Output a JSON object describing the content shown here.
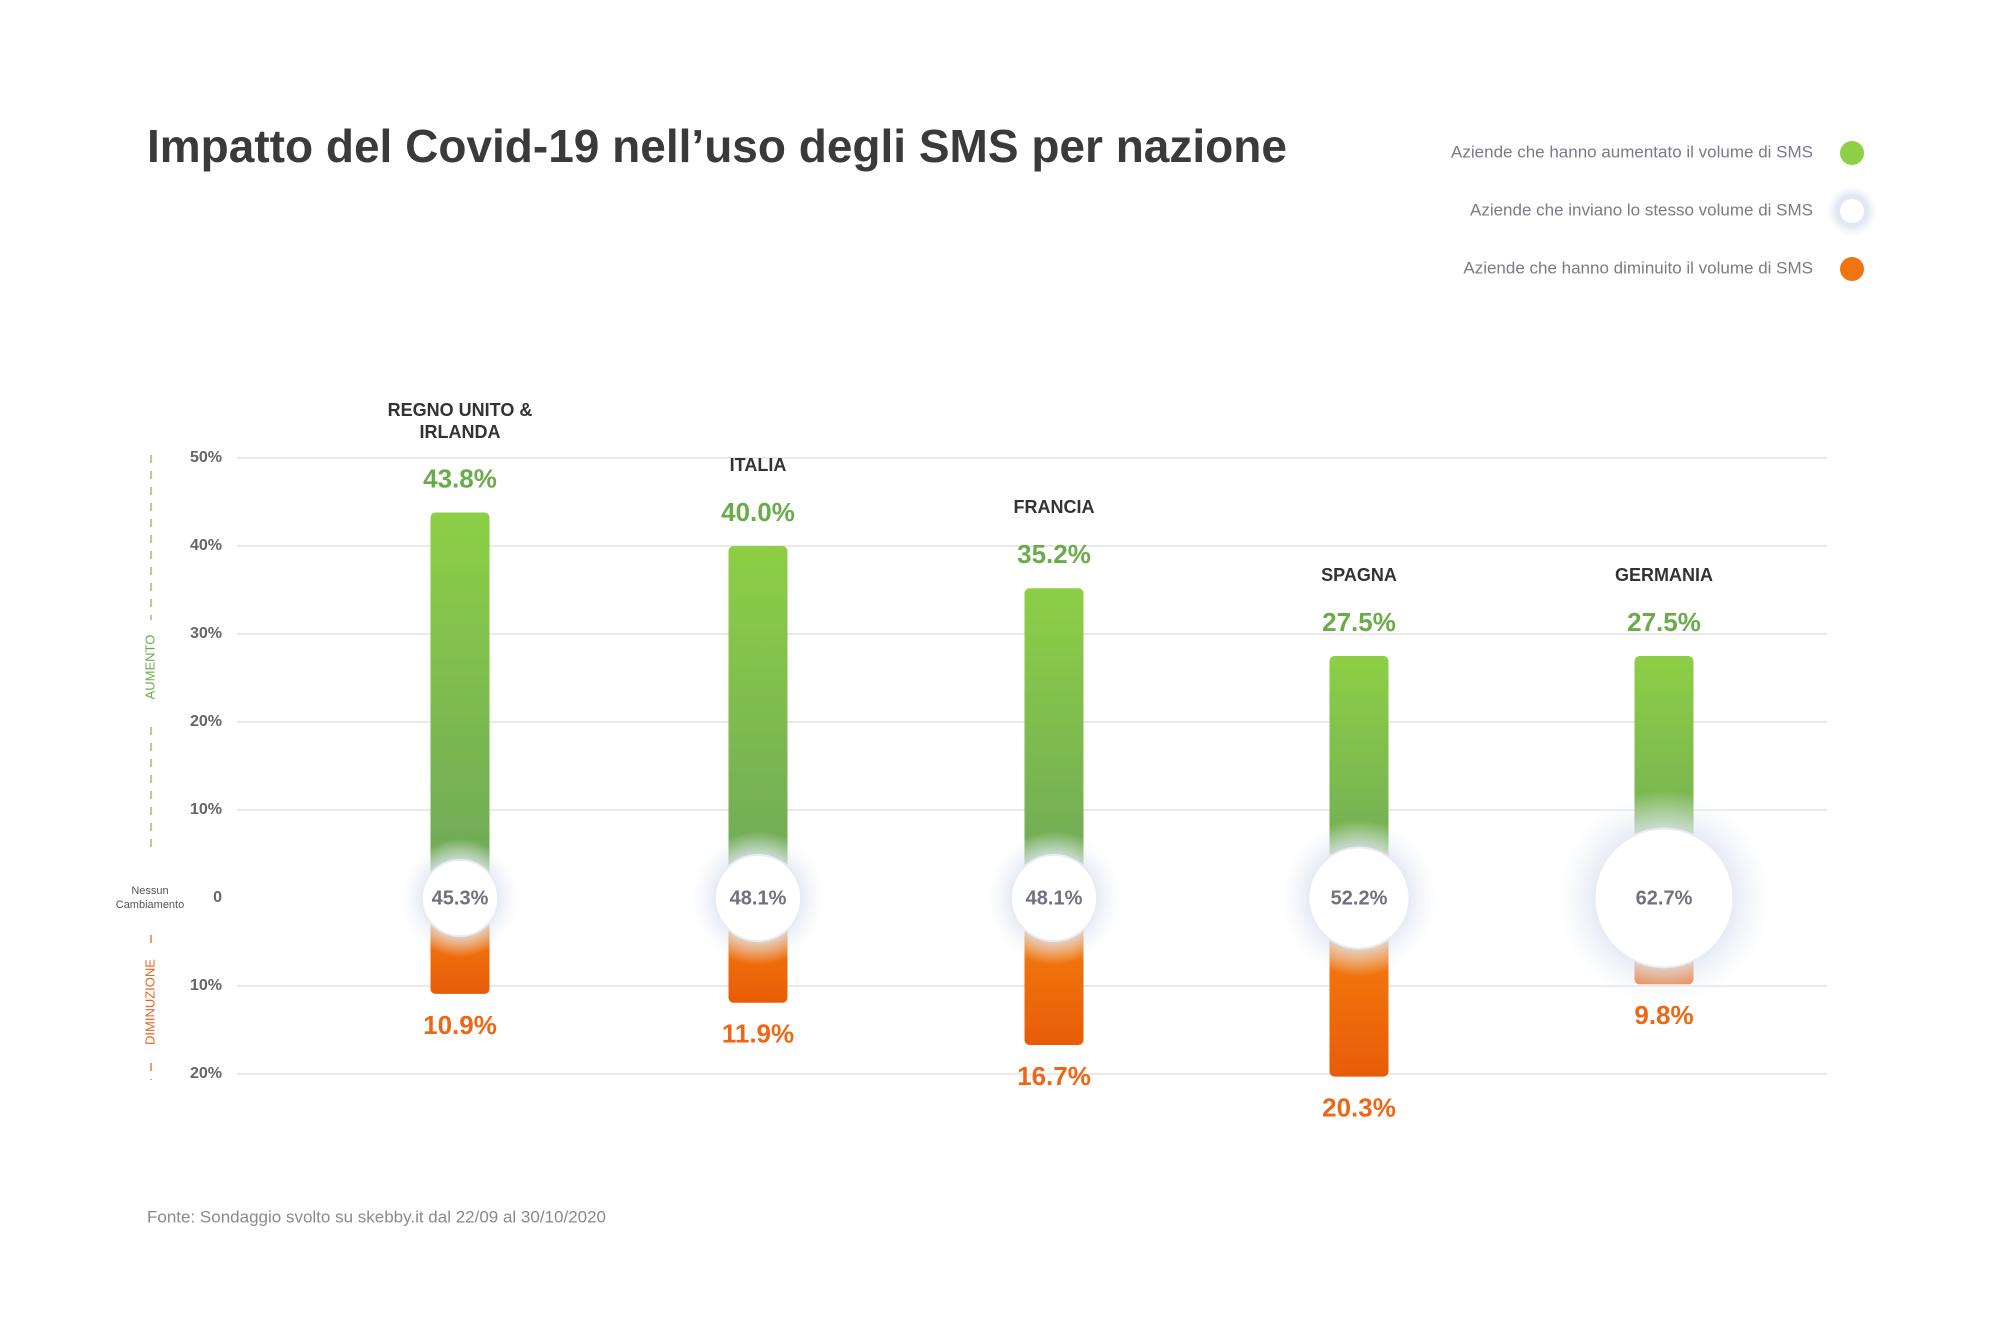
{
  "chart_data": {
    "type": "diverging-bar",
    "title": "Impatto del Covid-19 nell’uso degli SMS per nazione",
    "categories": [
      "REGNO UNITO & IRLANDA",
      "ITALIA",
      "FRANCIA",
      "SPAGNA",
      "GERMANIA"
    ],
    "series": [
      {
        "name": "Aziende che hanno aumentato il volume di SMS",
        "color": "#8dcf45",
        "values": [
          43.8,
          40.0,
          35.2,
          27.5,
          27.5
        ],
        "value_labels": [
          "43.8%",
          "40.0%",
          "35.2%",
          "27.5%",
          "27.5%"
        ]
      },
      {
        "name": "Aziende che inviano lo stesso volume di SMS",
        "color": "#ffffff",
        "values": [
          45.3,
          48.1,
          48.1,
          52.2,
          62.7
        ],
        "value_labels": [
          "45.3%",
          "48.1%",
          "48.1%",
          "52.2%",
          "62.7%"
        ]
      },
      {
        "name": "Aziende che hanno diminuito il volume di SMS",
        "color": "#f07410",
        "values": [
          -10.9,
          -11.9,
          -16.7,
          -20.3,
          -9.8
        ],
        "value_labels": [
          "10.9%",
          "11.9%",
          "16.7%",
          "20.3%",
          "9.8%"
        ]
      }
    ],
    "ylim": [
      -20,
      50
    ],
    "yticks": [
      {
        "value": 50,
        "label": "50%"
      },
      {
        "value": 40,
        "label": "40%"
      },
      {
        "value": 30,
        "label": "30%"
      },
      {
        "value": 20,
        "label": "20%"
      },
      {
        "value": 10,
        "label": "10%"
      },
      0,
      {
        "value": -10,
        "label": "10%"
      },
      {
        "value": -20,
        "label": "20%"
      }
    ],
    "grid": true,
    "axis_labels": {
      "up": "AUMENTO",
      "down": "DIMINUZIONE",
      "zero": "Nessun Cambiamento"
    },
    "source": "Fonte:  Sondaggio svolto su skebby.it dal 22/09 al 30/10/2020"
  }
}
